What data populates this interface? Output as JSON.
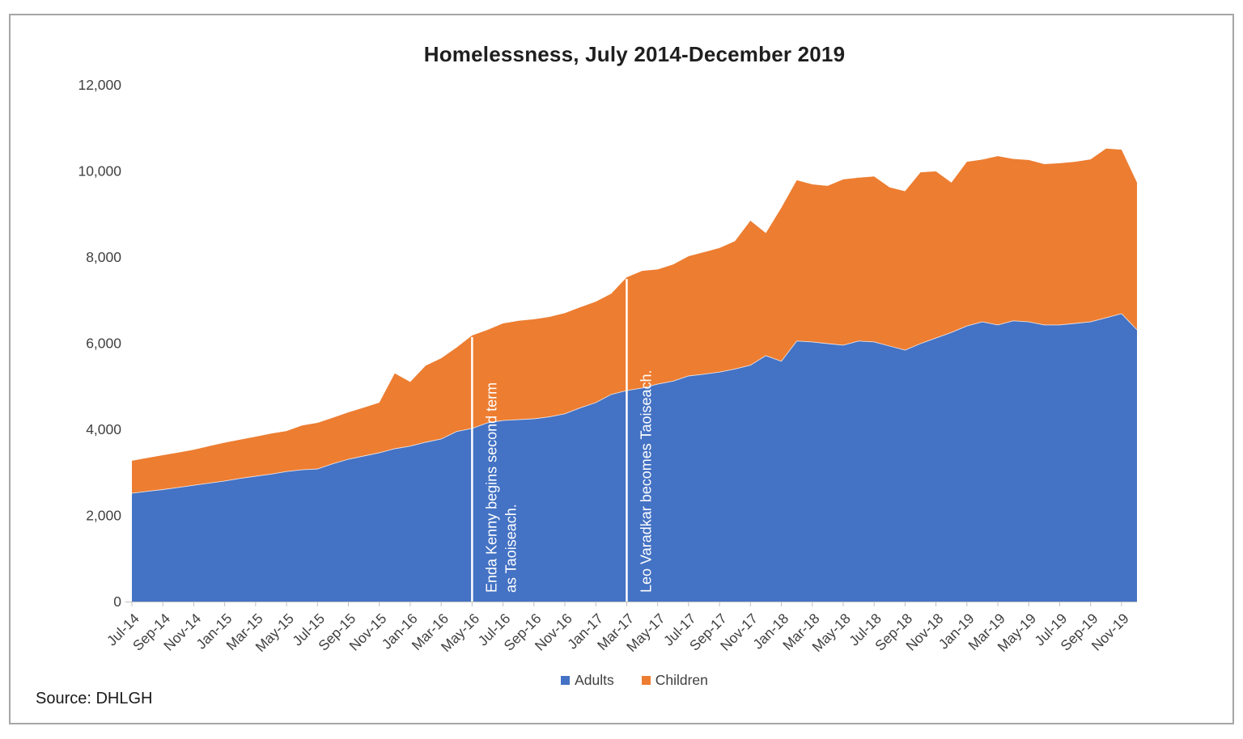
{
  "title": "Homelessness, July 2014-December 2019",
  "source_note": "Source: DHLGH",
  "legend": {
    "items": [
      {
        "label": "Adults",
        "color": "#4472C4"
      },
      {
        "label": "Children",
        "color": "#ED7D31"
      }
    ]
  },
  "colors": {
    "adults": "#4472C4",
    "children": "#ED7D31",
    "axis_text": "#404040",
    "axis_line": "#bfbfbf",
    "annotation": "#ffffff",
    "frame_border": "#a6a6a6"
  },
  "chart_data": {
    "type": "area",
    "stacked": true,
    "title": "Homelessness, July 2014-December 2019",
    "xlabel": "",
    "ylabel": "",
    "ylim": [
      0,
      12000
    ],
    "y_tick_step": 2000,
    "grid": false,
    "legend_position": "bottom",
    "tick_every": 2,
    "x": [
      "Jul-14",
      "Aug-14",
      "Sep-14",
      "Oct-14",
      "Nov-14",
      "Dec-14",
      "Jan-15",
      "Feb-15",
      "Mar-15",
      "Apr-15",
      "May-15",
      "Jun-15",
      "Jul-15",
      "Aug-15",
      "Sep-15",
      "Oct-15",
      "Nov-15",
      "Dec-15",
      "Jan-16",
      "Feb-16",
      "Mar-16",
      "Apr-16",
      "May-16",
      "Jun-16",
      "Jul-16",
      "Aug-16",
      "Sep-16",
      "Oct-16",
      "Nov-16",
      "Dec-16",
      "Jan-17",
      "Feb-17",
      "Mar-17",
      "Apr-17",
      "May-17",
      "Jun-17",
      "Jul-17",
      "Aug-17",
      "Sep-17",
      "Oct-17",
      "Nov-17",
      "Dec-17",
      "Jan-18",
      "Feb-18",
      "Mar-18",
      "Apr-18",
      "May-18",
      "Jun-18",
      "Jul-18",
      "Aug-18",
      "Sep-18",
      "Oct-18",
      "Nov-18",
      "Dec-18",
      "Jan-19",
      "Feb-19",
      "Mar-19",
      "Apr-19",
      "May-19",
      "Jun-19",
      "Jul-19",
      "Aug-19",
      "Sep-19",
      "Oct-19",
      "Nov-19",
      "Dec-19"
    ],
    "series": [
      {
        "name": "Adults",
        "color": "#4472C4",
        "values": [
          2515,
          2560,
          2600,
          2650,
          2700,
          2750,
          2800,
          2860,
          2910,
          2960,
          3020,
          3060,
          3080,
          3200,
          3305,
          3380,
          3455,
          3550,
          3610,
          3700,
          3775,
          3950,
          4020,
          4150,
          4205,
          4225,
          4245,
          4290,
          4360,
          4500,
          4620,
          4810,
          4900,
          4960,
          5050,
          5120,
          5240,
          5280,
          5330,
          5400,
          5490,
          5710,
          5580,
          6050,
          6030,
          5990,
          5955,
          6050,
          6030,
          5935,
          5840,
          5990,
          6120,
          6250,
          6400,
          6495,
          6425,
          6520,
          6495,
          6425,
          6425,
          6460,
          6495,
          6590,
          6685,
          6310
        ]
      },
      {
        "name": "Children",
        "color": "#ED7D31",
        "values": [
          755,
          775,
          800,
          810,
          825,
          860,
          890,
          900,
          920,
          940,
          940,
          1030,
          1070,
          1070,
          1090,
          1125,
          1165,
          1750,
          1490,
          1780,
          1875,
          1950,
          2160,
          2160,
          2255,
          2295,
          2310,
          2320,
          2340,
          2335,
          2345,
          2340,
          2630,
          2720,
          2665,
          2710,
          2780,
          2835,
          2880,
          2970,
          3355,
          2850,
          3565,
          3735,
          3660,
          3665,
          3850,
          3795,
          3845,
          3685,
          3690,
          3980,
          3870,
          3480,
          3815,
          3770,
          3920,
          3760,
          3760,
          3735,
          3755,
          3755,
          3775,
          3930,
          3810,
          3420
        ]
      }
    ],
    "annotations": [
      {
        "text_lines": [
          "Enda Kenny begins second term",
          "as Taoiseach."
        ],
        "month": "May-16",
        "month_index": 22
      },
      {
        "text_lines": [
          "Leo Varadkar becomes Taoiseach."
        ],
        "month": "Mar-17",
        "month_index": 32
      }
    ]
  }
}
